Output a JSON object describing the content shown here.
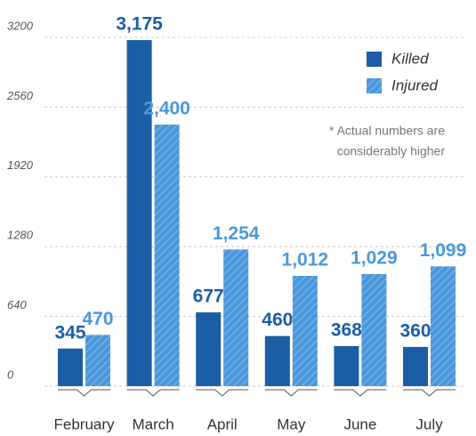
{
  "chart_data": {
    "type": "bar",
    "categories": [
      "February",
      "March",
      "April",
      "May",
      "June",
      "July"
    ],
    "series": [
      {
        "name": "Killed",
        "color": "#1b5ea6",
        "values": [
          345,
          3175,
          677,
          460,
          368,
          360
        ],
        "value_labels": [
          "345",
          "3,175",
          "677",
          "460",
          "368",
          "360"
        ]
      },
      {
        "name": "Injured",
        "color": "#4a97dc",
        "hatch": true,
        "values": [
          470,
          2400,
          1254,
          1012,
          1029,
          1099
        ],
        "value_labels": [
          "470",
          "2,400",
          "1,254",
          "1,012",
          "1,029",
          "1,099"
        ]
      }
    ],
    "ylim": [
      0,
      3200
    ],
    "yticks": [
      0,
      640,
      1280,
      1920,
      2560,
      3200
    ],
    "grid": true,
    "legend": "top-right",
    "annotation": [
      "* Actual numbers are",
      "considerably higher"
    ]
  }
}
